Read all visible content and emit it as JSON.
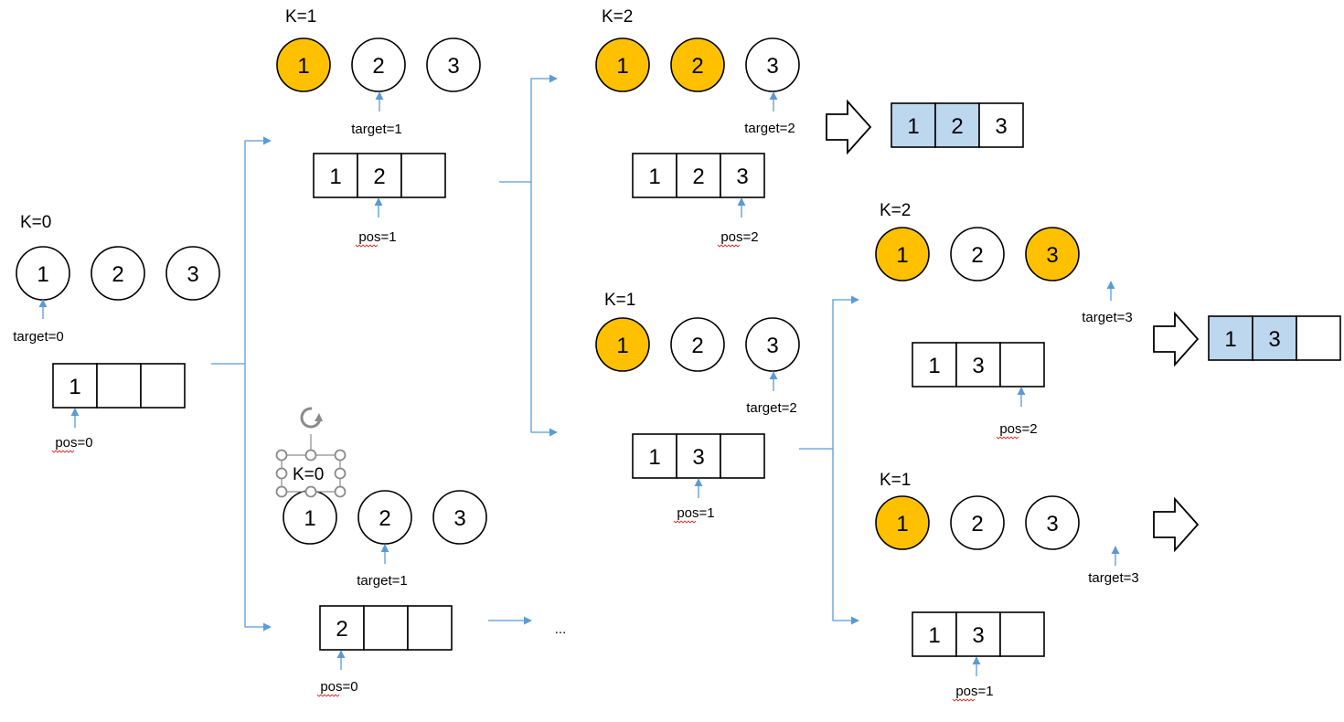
{
  "colors": {
    "selected_circle": "#ffc000",
    "filled_cell": "#bdd7ee",
    "connector": "#5b9bd5"
  },
  "ellipsis": "...",
  "nodes": [
    {
      "k_label": "K=0",
      "circles": [
        {
          "n": "1",
          "selected": false
        },
        {
          "n": "2",
          "selected": false
        },
        {
          "n": "3",
          "selected": false
        }
      ],
      "target_label": "target=0",
      "target_index": 0,
      "cells": [
        "1",
        "",
        ""
      ],
      "pos_label": "pos=0",
      "pos_index": 0
    },
    {
      "k_label": "K=1",
      "circles": [
        {
          "n": "1",
          "selected": true
        },
        {
          "n": "2",
          "selected": false
        },
        {
          "n": "3",
          "selected": false
        }
      ],
      "target_label": "target=1",
      "target_index": 1,
      "cells": [
        "1",
        "2",
        ""
      ],
      "pos_label": "pos=1",
      "pos_index": 1
    },
    {
      "k_label": "K=0",
      "circles": [
        {
          "n": "1",
          "selected": false
        },
        {
          "n": "2",
          "selected": false
        },
        {
          "n": "3",
          "selected": false
        }
      ],
      "target_label": "target=1",
      "target_index": 1,
      "cells": [
        "2",
        "",
        ""
      ],
      "pos_label": "pos=0",
      "pos_index": 0
    },
    {
      "k_label": "K=2",
      "circles": [
        {
          "n": "1",
          "selected": true
        },
        {
          "n": "2",
          "selected": true
        },
        {
          "n": "3",
          "selected": false
        }
      ],
      "target_label": "target=2",
      "target_index": 2,
      "cells": [
        "1",
        "2",
        "3"
      ],
      "pos_label": "pos=2",
      "pos_index": 2
    },
    {
      "k_label": "K=1",
      "circles": [
        {
          "n": "1",
          "selected": true
        },
        {
          "n": "2",
          "selected": false
        },
        {
          "n": "3",
          "selected": false
        }
      ],
      "target_label": "target=2",
      "target_index": 2,
      "cells": [
        "1",
        "3",
        ""
      ],
      "pos_label": "pos=1",
      "pos_index": 1
    },
    {
      "k_label": "K=2",
      "circles": [
        {
          "n": "1",
          "selected": true
        },
        {
          "n": "2",
          "selected": false
        },
        {
          "n": "3",
          "selected": true
        }
      ],
      "target_label": "target=3",
      "target_index": 3,
      "cells": [
        "1",
        "3",
        ""
      ],
      "pos_label": "pos=2",
      "pos_index": 2
    },
    {
      "k_label": "K=1",
      "circles": [
        {
          "n": "1",
          "selected": true
        },
        {
          "n": "2",
          "selected": false
        },
        {
          "n": "3",
          "selected": false
        }
      ],
      "target_label": "target=3",
      "target_index": 3,
      "cells": [
        "1",
        "3",
        ""
      ],
      "pos_label": "pos=1",
      "pos_index": 1
    }
  ],
  "results": [
    {
      "cells": [
        "1",
        "2",
        "3"
      ],
      "filled": [
        true,
        true,
        false
      ]
    },
    {
      "cells": [
        "1",
        "3",
        ""
      ],
      "filled": [
        true,
        true,
        false
      ]
    }
  ]
}
